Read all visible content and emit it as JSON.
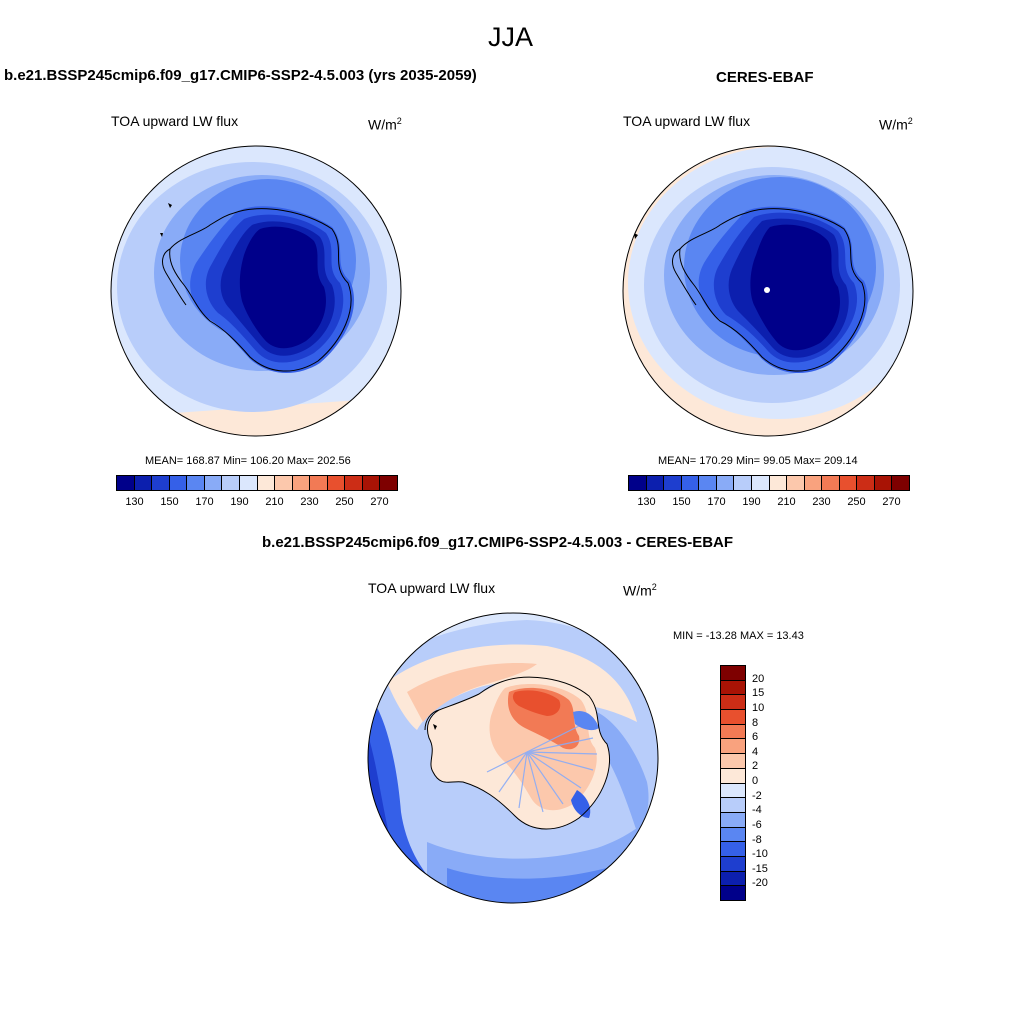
{
  "season": "JJA",
  "panels": {
    "model": {
      "title": "b.e21.BSSP245cmip6.f09_g17.CMIP6-SSP2-4.5.003 (yrs 2035-2059)",
      "variable": "TOA upward LW flux",
      "units": "W/m",
      "units_sup": "2",
      "stats": "MEAN= 168.87  Min= 106.20  Max= 202.56",
      "mean": 168.87,
      "min": 106.2,
      "max": 202.56
    },
    "obs": {
      "title": "CERES-EBAF",
      "variable": "TOA upward LW flux",
      "units": "W/m",
      "units_sup": "2",
      "stats": "MEAN= 170.29  Min=  99.05  Max= 209.14",
      "mean": 170.29,
      "min": 99.05,
      "max": 209.14
    },
    "diff": {
      "title": "b.e21.BSSP245cmip6.f09_g17.CMIP6-SSP2-4.5.003 - CERES-EBAF",
      "variable": "TOA upward LW flux",
      "units": "W/m",
      "units_sup": "2",
      "stats": "MIN = -13.28 MAX =  13.43",
      "min": -13.28,
      "max": 13.43
    }
  },
  "colorbar_main": {
    "colors": [
      "#00008a",
      "#0c1fae",
      "#1e3ecf",
      "#3560e8",
      "#5a86f2",
      "#89abf7",
      "#b8cdfa",
      "#dbe7fd",
      "#fde8d8",
      "#fcc8ac",
      "#f9a27e",
      "#f27a55",
      "#e8502e",
      "#cc2d16",
      "#a81305",
      "#7e0000"
    ],
    "labels": [
      "130",
      "150",
      "170",
      "190",
      "210",
      "230",
      "250",
      "270"
    ]
  },
  "colorbar_diff": {
    "colors": [
      "#7e0000",
      "#a81305",
      "#cc2d16",
      "#e8502e",
      "#f27a55",
      "#f9a27e",
      "#fcc8ac",
      "#fde8d8",
      "#dbe7fd",
      "#b8cdfa",
      "#89abf7",
      "#5a86f2",
      "#3560e8",
      "#1e3ecf",
      "#0c1fae",
      "#00008a"
    ],
    "labels": [
      "20",
      "15",
      "10",
      "8",
      "6",
      "4",
      "2",
      "0",
      "-2",
      "-4",
      "-6",
      "-8",
      "-10",
      "-15",
      "-20"
    ]
  }
}
